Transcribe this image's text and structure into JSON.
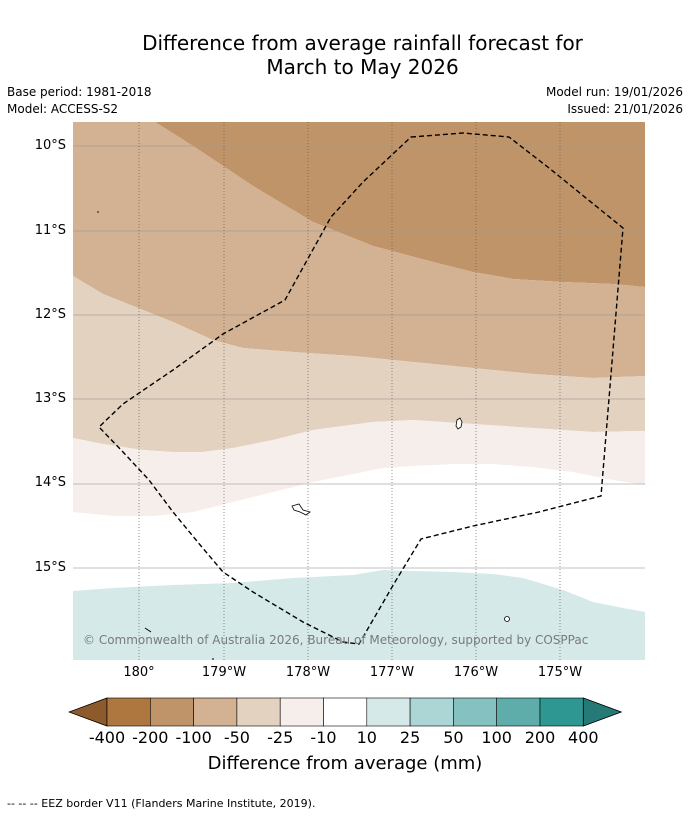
{
  "title_line1": "Difference from average rainfall forecast for",
  "title_line2": "March to May 2026",
  "meta": {
    "base_period": "Base period: 1981-2018",
    "model": "Model: ACCESS-S2",
    "model_run": "Model run: 19/01/2026",
    "issued": "Issued: 21/01/2026"
  },
  "axes": {
    "latitudes": [
      "10°S",
      "11°S",
      "12°S",
      "13°S",
      "14°S",
      "15°S"
    ],
    "longitudes": [
      "180°",
      "179°W",
      "178°W",
      "177°W",
      "176°W",
      "175°W"
    ]
  },
  "copyright": "© Commonwealth of Australia 2026, Bureau of Meteorology, supported by COSPPac",
  "colorbar": {
    "labels": [
      "-400",
      "-200",
      "-100",
      "-50",
      "-25",
      "-10",
      "10",
      "25",
      "50",
      "100",
      "200",
      "400"
    ],
    "colors": [
      "#8c5a2b",
      "#ad773f",
      "#c09469",
      "#d2b293",
      "#e4d2c0",
      "#f5eeea",
      "#ffffff",
      "#d5e9e9",
      "#acd5d6",
      "#84c1c0",
      "#5eadaa",
      "#2e9791",
      "#257a78"
    ],
    "title": "Difference from average (mm)"
  },
  "footnote": "--  --  -- EEZ border V11 (Flanders Marine Institute, 2019)."
}
